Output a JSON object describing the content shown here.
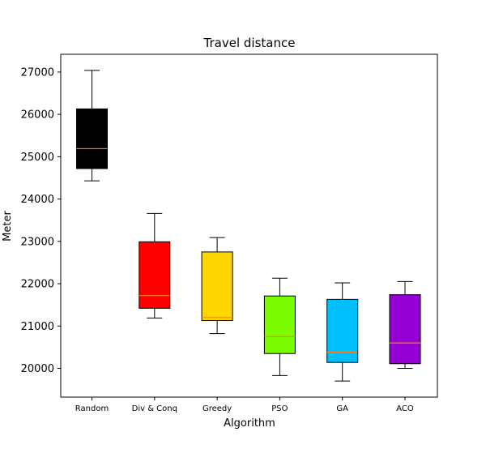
{
  "chart_data": {
    "type": "box",
    "title": "Travel distance",
    "xlabel": "Algorithm",
    "ylabel": "Meter",
    "ylim": [
      19320,
      27420
    ],
    "yticks": [
      20000,
      21000,
      22000,
      23000,
      24000,
      25000,
      26000,
      27000
    ],
    "grid": false,
    "median_color": "#ff7f0e",
    "categories": [
      "Random",
      "Div & Conq",
      "Greedy",
      "PSO",
      "GA",
      "ACO"
    ],
    "boxes": [
      {
        "label": "Random",
        "whisker_low": 24430,
        "q1": 24720,
        "median": 25190,
        "q3": 26130,
        "whisker_high": 27040,
        "color": "#000000"
      },
      {
        "label": "Div & Conq",
        "whisker_low": 21190,
        "q1": 21420,
        "median": 21720,
        "q3": 22990,
        "whisker_high": 23660,
        "color": "#ff0000"
      },
      {
        "label": "Greedy",
        "whisker_low": 20820,
        "q1": 21130,
        "median": 21200,
        "q3": 22750,
        "whisker_high": 23090,
        "color": "#ffd700"
      },
      {
        "label": "PSO",
        "whisker_low": 19830,
        "q1": 20350,
        "median": 20750,
        "q3": 21710,
        "whisker_high": 22130,
        "color": "#7cfc00"
      },
      {
        "label": "GA",
        "whisker_low": 19700,
        "q1": 20140,
        "median": 20380,
        "q3": 21630,
        "whisker_high": 22020,
        "color": "#00bfff"
      },
      {
        "label": "ACO",
        "whisker_low": 20000,
        "q1": 20110,
        "median": 20600,
        "q3": 21740,
        "whisker_high": 22050,
        "color": "#9400d3"
      }
    ]
  }
}
